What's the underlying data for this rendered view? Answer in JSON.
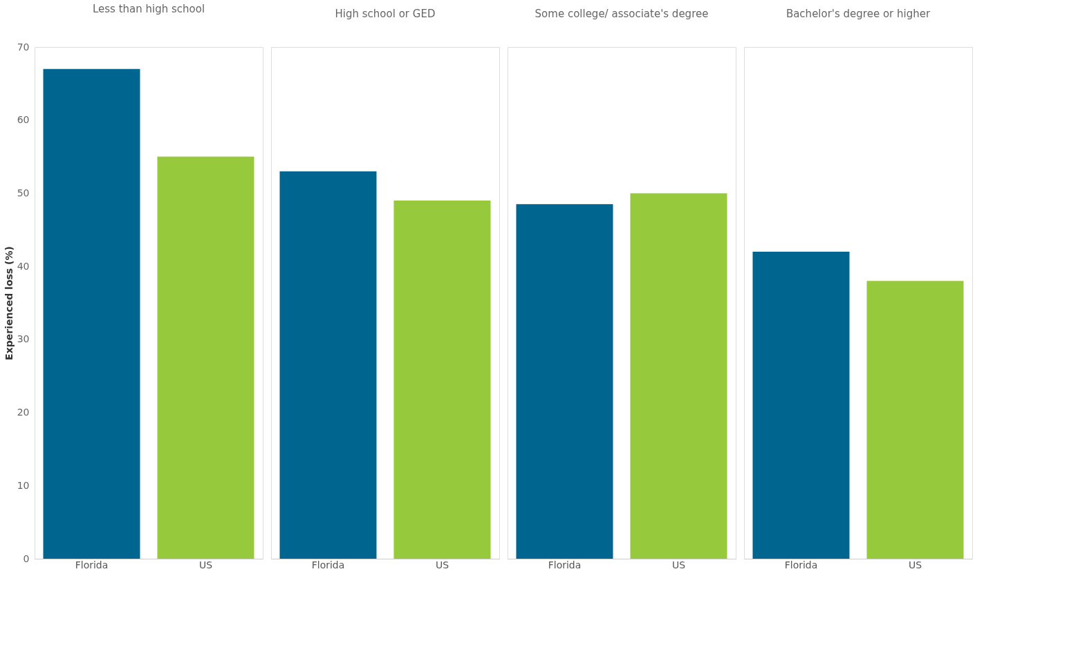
{
  "chart_data": [
    {
      "type": "bar",
      "title": "Less than high school",
      "ylabel": "Experienced loss (%)",
      "categories": [
        "Florida",
        "US"
      ],
      "colors": [
        "#00668f",
        "#97c93c"
      ],
      "values": [
        67,
        55
      ],
      "ylim": [
        0,
        70
      ],
      "yticks": [
        0,
        10,
        20,
        30,
        40,
        50,
        60,
        70
      ]
    },
    {
      "type": "bar",
      "title": "High school or GED",
      "categories": [
        "Florida",
        "US"
      ],
      "colors": [
        "#00668f",
        "#97c93c"
      ],
      "values": [
        53,
        49
      ],
      "ylim": [
        0,
        70
      ],
      "yticks": [
        0,
        10,
        20,
        30,
        40,
        50,
        60,
        70
      ],
      "tick_labels": "x"
    },
    {
      "type": "bar",
      "title": "Some college/ associate's degree",
      "categories": [
        "Florida",
        "US"
      ],
      "colors": [
        "#00668f",
        "#97c93c"
      ],
      "values": [
        48.5,
        50
      ],
      "ylim": [
        0,
        70
      ],
      "yticks": [
        0,
        10,
        20,
        30,
        40,
        50,
        60,
        70
      ],
      "tick_labels": "x"
    },
    {
      "type": "bar",
      "title": "Bachelor's degree or higher",
      "categories": [
        "Florida",
        "US"
      ],
      "colors": [
        "#00668f",
        "#97c93c"
      ],
      "values": [
        42,
        38
      ],
      "ylim": [
        0,
        70
      ],
      "yticks": [
        0,
        10,
        20,
        30,
        40,
        50,
        60,
        70
      ],
      "tick_labels": "x"
    }
  ]
}
